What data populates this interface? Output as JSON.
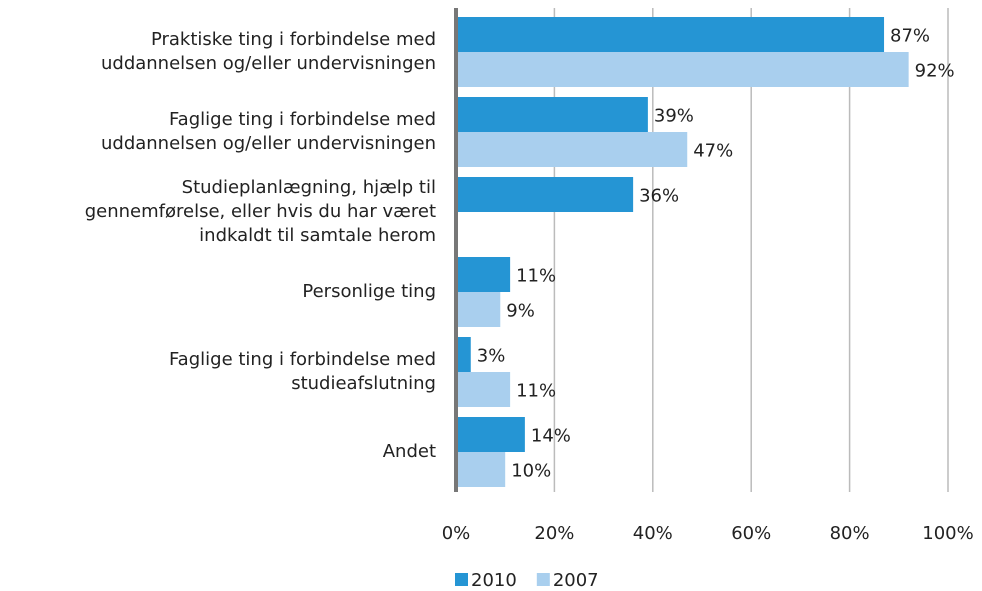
{
  "chart_data": {
    "type": "bar",
    "orientation": "horizontal",
    "categories": [
      [
        "Praktiske ting i forbindelse med",
        "uddannelsen og/eller undervisningen"
      ],
      [
        "Faglige ting i forbindelse med",
        "uddannelsen og/eller undervisningen"
      ],
      [
        "Studieplanlægning, hjælp til",
        "gennemførelse, eller hvis du har været",
        "indkaldt til samtale herom"
      ],
      [
        "Personlige ting"
      ],
      [
        "Faglige ting i forbindelse med",
        "studieafslutning"
      ],
      [
        "Andet"
      ]
    ],
    "series": [
      {
        "name": "2010",
        "color": "#2595d4",
        "values": [
          87,
          39,
          36,
          11,
          3,
          14
        ],
        "value_labels": [
          "87%",
          "39%",
          "36%",
          "11%",
          "3%",
          "14%"
        ]
      },
      {
        "name": "2007",
        "color": "#a9cfee",
        "values": [
          92,
          47,
          null,
          9,
          11,
          10
        ],
        "value_labels": [
          "92%",
          "47%",
          null,
          "9%",
          "11%",
          "10%"
        ]
      }
    ],
    "xlim": [
      0,
      100
    ],
    "xticks": [
      {
        "value": 0,
        "label": "0%"
      },
      {
        "value": 20,
        "label": "20%"
      },
      {
        "value": 40,
        "label": "40%"
      },
      {
        "value": 60,
        "label": "60%"
      },
      {
        "value": 80,
        "label": "80%"
      },
      {
        "value": 100,
        "label": "100%"
      }
    ],
    "grid": true,
    "legend": "bottom"
  }
}
